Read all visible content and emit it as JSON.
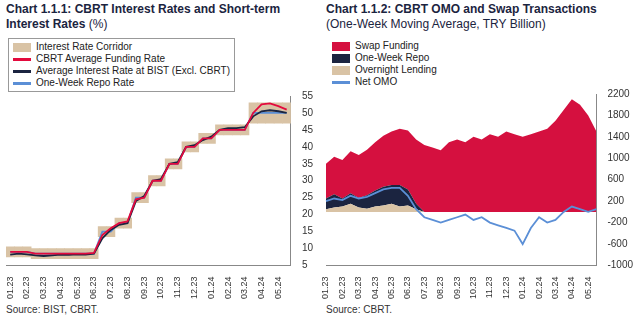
{
  "chart_data": [
    {
      "type": "line",
      "title": "Chart 1.1.1: CBRT Interest Rates and Short-term Interest Rates",
      "subtitle": "(%)",
      "source": "Source: BIST, CBRT.",
      "categories": [
        "01.23",
        null,
        "02.23",
        null,
        "03.23",
        null,
        "04.23",
        null,
        "05.23",
        null,
        "06.23",
        null,
        "07.23",
        null,
        "08.23",
        null,
        "09.23",
        null,
        "10.23",
        null,
        "11.23",
        null,
        "12.23",
        null,
        "01.24",
        null,
        "02.24",
        null,
        "03.24",
        null,
        "04.24",
        null,
        "05.24",
        null
      ],
      "series": [
        {
          "name": "Interest Rate Corridor",
          "type": "bar",
          "color": "#d9c3a5",
          "values": [
            [
              7.5,
              10.5
            ],
            [
              7.5,
              10.5
            ],
            [
              7.5,
              10.5
            ],
            [
              7,
              10
            ],
            [
              7,
              10
            ],
            [
              7,
              10
            ],
            [
              7,
              10
            ],
            [
              7,
              10
            ],
            [
              7,
              10
            ],
            [
              7,
              10
            ],
            [
              7,
              10
            ],
            [
              13.5,
              16.5
            ],
            [
              13.5,
              16.5
            ],
            [
              16,
              19
            ],
            [
              16,
              19
            ],
            [
              23.5,
              26.5
            ],
            [
              23.5,
              26.5
            ],
            [
              28.5,
              31.5
            ],
            [
              28.5,
              31.5
            ],
            [
              33.5,
              36.5
            ],
            [
              33.5,
              36.5
            ],
            [
              38.5,
              41.5
            ],
            [
              38.5,
              41.5
            ],
            [
              41,
              44
            ],
            [
              41,
              44
            ],
            [
              43.5,
              46.5
            ],
            [
              43.5,
              46.5
            ],
            [
              43.5,
              46.5
            ],
            [
              43.5,
              46.5
            ],
            [
              47,
              53
            ],
            [
              47,
              53
            ],
            [
              47,
              53
            ],
            [
              47,
              53
            ],
            [
              47,
              53
            ]
          ]
        },
        {
          "name": "CBRT Average Funding Rate",
          "type": "line",
          "color": "#e30a3d",
          "values": [
            9,
            9,
            9,
            8.5,
            8.5,
            8.5,
            8.5,
            8.5,
            8.5,
            8.5,
            8.7,
            14,
            16,
            17.5,
            18,
            24.5,
            25,
            30,
            30,
            35,
            35,
            40,
            40,
            42.5,
            42.5,
            45,
            45,
            45,
            45,
            50,
            52.5,
            52.8,
            52,
            51
          ]
        },
        {
          "name": "Average Interest Rate at BIST (Excl. CBRT)",
          "type": "line",
          "color": "#1b2440",
          "values": [
            8.2,
            8.5,
            8.3,
            8,
            7.8,
            8,
            8.2,
            8.1,
            8.3,
            8.2,
            8.5,
            13,
            15.5,
            17,
            17.5,
            24,
            25.5,
            30,
            30.5,
            35,
            35.5,
            40,
            40.5,
            42,
            43,
            45,
            45.5,
            45.5,
            45.8,
            49,
            50.5,
            50.8,
            50.5,
            50
          ]
        },
        {
          "name": "One-Week Repo Rate",
          "type": "line",
          "color": "#5b8fd6",
          "values": [
            9,
            9,
            9,
            8.5,
            8.5,
            8.5,
            8.5,
            8.5,
            8.5,
            8.5,
            8.5,
            15,
            15,
            17.5,
            17.5,
            25,
            25,
            30,
            30,
            35,
            35,
            40,
            40,
            42.5,
            42.5,
            45,
            45,
            45,
            45,
            50,
            50,
            50,
            50,
            50
          ]
        }
      ],
      "ylim": [
        5,
        55
      ],
      "yticks": [
        5,
        10,
        15,
        20,
        25,
        30,
        35,
        40,
        45,
        50,
        55
      ],
      "grid": false,
      "legend": "top-left"
    },
    {
      "type": "line",
      "title": "Chart 1.1.2: CBRT OMO and Swap Transactions",
      "subtitle": "(One-Week Moving Average, TRY Billion)",
      "source": "Source: CBRT.",
      "categories": [
        "01.23",
        null,
        "02.23",
        null,
        "03.23",
        null,
        "04.23",
        null,
        "05.23",
        null,
        "06.23",
        null,
        "07.23",
        null,
        "08.23",
        null,
        "09.23",
        null,
        "10.23",
        null,
        "11.23",
        null,
        "12.23",
        null,
        "01.24",
        null,
        "02.24",
        null,
        "03.24",
        null,
        "04.24",
        null,
        "05.24",
        null
      ],
      "series": [
        {
          "name": "Swap Funding",
          "type": "area",
          "color": "#d5103f",
          "values": [
            650,
            700,
            720,
            780,
            800,
            850,
            900,
            950,
            1000,
            1050,
            1100,
            1200,
            1250,
            1200,
            1150,
            1300,
            1350,
            1300,
            1400,
            1350,
            1450,
            1400,
            1500,
            1450,
            1400,
            1450,
            1500,
            1550,
            1700,
            1900,
            2100,
            2000,
            1800,
            1500
          ]
        },
        {
          "name": "One-Week Repo",
          "type": "area",
          "color": "#1b2440",
          "values": [
            200,
            250,
            150,
            200,
            180,
            250,
            300,
            350,
            350,
            400,
            300,
            100,
            0,
            0,
            0,
            0,
            0,
            0,
            0,
            0,
            0,
            0,
            0,
            0,
            0,
            0,
            0,
            0,
            0,
            0,
            0,
            0,
            0,
            0
          ]
        },
        {
          "name": "Overnight Lending",
          "type": "area",
          "color": "#d9c3a5",
          "values": [
            50,
            80,
            100,
            150,
            80,
            60,
            100,
            120,
            150,
            100,
            120,
            50,
            0,
            0,
            0,
            0,
            0,
            0,
            0,
            0,
            0,
            0,
            0,
            0,
            0,
            0,
            0,
            0,
            0,
            0,
            0,
            0,
            0,
            0
          ]
        },
        {
          "name": "Net OMO",
          "type": "line",
          "color": "#5b8fd6",
          "values": [
            200,
            250,
            220,
            300,
            250,
            280,
            350,
            420,
            450,
            450,
            300,
            50,
            -100,
            -150,
            -200,
            -150,
            -100,
            -50,
            -150,
            -100,
            -200,
            -250,
            -300,
            -350,
            -600,
            -300,
            -100,
            -200,
            -150,
            0,
            100,
            50,
            0,
            50
          ]
        }
      ],
      "ylim": [
        -1000,
        2200
      ],
      "yticks": [
        -1000,
        -600,
        -200,
        200,
        600,
        1000,
        1400,
        1800,
        2200
      ],
      "stacked": true,
      "grid": false,
      "legend": "top-left"
    }
  ]
}
